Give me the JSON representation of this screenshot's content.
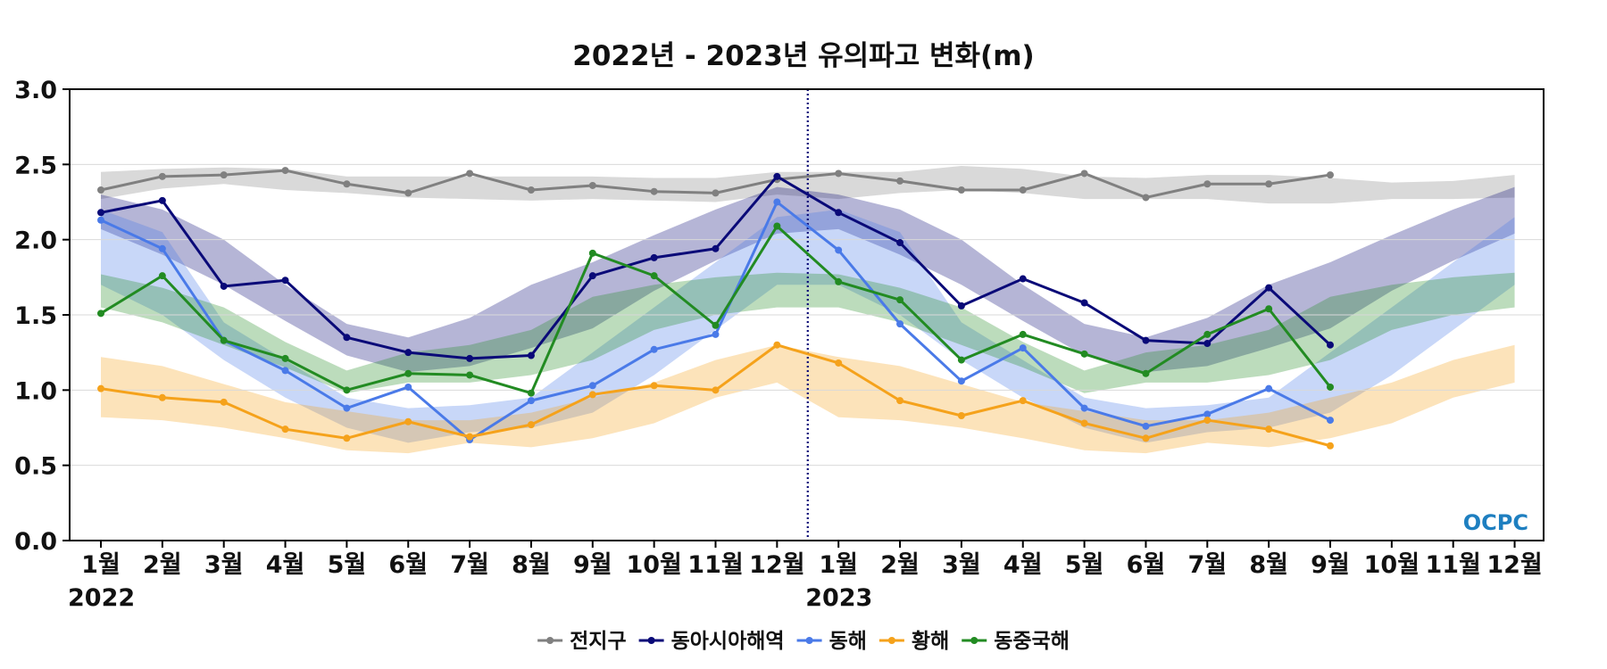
{
  "chart_data": {
    "type": "line",
    "title": "2022년 - 2023년 유의파고 변화(m)",
    "xlabel": "",
    "ylabel": "",
    "ylim": [
      0,
      3.0
    ],
    "yticks": [
      "0.0",
      "0.5",
      "1.0",
      "1.5",
      "2.0",
      "2.5",
      "3.0"
    ],
    "ytick_values": [
      0,
      0.5,
      1.0,
      1.5,
      2.0,
      2.5,
      3.0
    ],
    "categories": [
      "1월",
      "2월",
      "3월",
      "4월",
      "5월",
      "6월",
      "7월",
      "8월",
      "9월",
      "10월",
      "11월",
      "12월",
      "1월",
      "2월",
      "3월",
      "4월",
      "5월",
      "6월",
      "7월",
      "8월",
      "9월",
      "10월",
      "11월",
      "12월"
    ],
    "years": [
      {
        "label": "2022",
        "start_index": 0
      },
      {
        "label": "2023",
        "start_index": 12
      }
    ],
    "divider_between": [
      11,
      12
    ],
    "grid": true,
    "legend_position": "bottom",
    "series": [
      {
        "name": "전지구",
        "color": "#808080",
        "values": [
          2.33,
          2.42,
          2.43,
          2.46,
          2.37,
          2.31,
          2.44,
          2.33,
          2.36,
          2.32,
          2.31,
          2.4,
          2.44,
          2.39,
          2.33,
          2.33,
          2.44,
          2.28,
          2.37,
          2.37,
          2.43,
          null,
          null,
          null
        ],
        "band_low": [
          2.27,
          2.34,
          2.37,
          2.33,
          2.31,
          2.28,
          2.27,
          2.26,
          2.27,
          2.26,
          2.25,
          2.3,
          2.27,
          2.31,
          2.33,
          2.31,
          2.27,
          2.27,
          2.27,
          2.24,
          2.24,
          2.27,
          2.27,
          2.28
        ],
        "band_high": [
          2.45,
          2.47,
          2.48,
          2.47,
          2.42,
          2.42,
          2.42,
          2.42,
          2.42,
          2.41,
          2.41,
          2.45,
          2.45,
          2.45,
          2.49,
          2.47,
          2.42,
          2.41,
          2.43,
          2.43,
          2.41,
          2.38,
          2.39,
          2.43
        ]
      },
      {
        "name": "동아시아해역",
        "color": "#0a0a78",
        "values": [
          2.18,
          2.26,
          1.69,
          1.73,
          1.35,
          1.25,
          1.21,
          1.23,
          1.76,
          1.88,
          1.94,
          2.42,
          2.18,
          1.98,
          1.56,
          1.74,
          1.58,
          1.33,
          1.31,
          1.68,
          1.3,
          null,
          null,
          null
        ],
        "band_low": [
          2.07,
          1.9,
          1.7,
          1.46,
          1.23,
          1.12,
          1.16,
          1.28,
          1.41,
          1.66,
          1.86,
          2.04,
          2.07,
          1.9,
          1.7,
          1.46,
          1.23,
          1.12,
          1.16,
          1.28,
          1.41,
          1.66,
          1.86,
          2.04
        ],
        "band_high": [
          2.3,
          2.2,
          2.0,
          1.7,
          1.44,
          1.35,
          1.48,
          1.7,
          1.85,
          2.03,
          2.2,
          2.35,
          2.3,
          2.2,
          2.0,
          1.7,
          1.44,
          1.35,
          1.48,
          1.7,
          1.85,
          2.03,
          2.2,
          2.35
        ]
      },
      {
        "name": "동해",
        "color": "#4a7ae8",
        "values": [
          2.13,
          1.94,
          1.33,
          1.13,
          0.88,
          1.02,
          0.67,
          0.93,
          1.03,
          1.27,
          1.37,
          2.25,
          1.93,
          1.44,
          1.06,
          1.28,
          0.88,
          0.76,
          0.84,
          1.01,
          0.8,
          null,
          null,
          null
        ],
        "band_low": [
          1.7,
          1.5,
          1.2,
          0.95,
          0.75,
          0.65,
          0.72,
          0.75,
          0.85,
          1.1,
          1.4,
          1.7,
          1.7,
          1.5,
          1.2,
          0.95,
          0.75,
          0.65,
          0.72,
          0.75,
          0.85,
          1.1,
          1.4,
          1.7
        ],
        "band_high": [
          2.2,
          2.05,
          1.45,
          1.2,
          0.95,
          0.88,
          0.9,
          0.95,
          1.25,
          1.55,
          1.85,
          2.15,
          2.2,
          2.05,
          1.45,
          1.2,
          0.95,
          0.88,
          0.9,
          0.95,
          1.25,
          1.55,
          1.85,
          2.15
        ]
      },
      {
        "name": "황해",
        "color": "#f5a21b",
        "values": [
          1.01,
          0.95,
          0.92,
          0.74,
          0.68,
          0.79,
          0.69,
          0.77,
          0.97,
          1.03,
          1.0,
          1.3,
          1.18,
          0.93,
          0.83,
          0.93,
          0.78,
          0.68,
          0.8,
          0.74,
          0.63,
          null,
          null,
          null
        ],
        "band_low": [
          0.82,
          0.8,
          0.75,
          0.68,
          0.6,
          0.58,
          0.65,
          0.62,
          0.68,
          0.78,
          0.95,
          1.05,
          0.82,
          0.8,
          0.75,
          0.68,
          0.6,
          0.58,
          0.65,
          0.62,
          0.68,
          0.78,
          0.95,
          1.05
        ],
        "band_high": [
          1.22,
          1.16,
          1.04,
          0.92,
          0.86,
          0.8,
          0.8,
          0.85,
          0.95,
          1.05,
          1.2,
          1.3,
          1.22,
          1.16,
          1.04,
          0.92,
          0.86,
          0.8,
          0.8,
          0.85,
          0.95,
          1.05,
          1.2,
          1.3
        ]
      },
      {
        "name": "동중국해",
        "color": "#228b22",
        "values": [
          1.51,
          1.76,
          1.33,
          1.21,
          1.0,
          1.11,
          1.1,
          0.98,
          1.91,
          1.76,
          1.43,
          2.09,
          1.72,
          1.6,
          1.2,
          1.37,
          1.24,
          1.11,
          1.37,
          1.54,
          1.02,
          null,
          null,
          null
        ],
        "band_low": [
          1.55,
          1.45,
          1.3,
          1.15,
          0.98,
          1.05,
          1.05,
          1.1,
          1.2,
          1.4,
          1.5,
          1.55,
          1.55,
          1.45,
          1.3,
          1.15,
          0.98,
          1.05,
          1.05,
          1.1,
          1.2,
          1.4,
          1.5,
          1.55
        ],
        "band_high": [
          1.77,
          1.68,
          1.55,
          1.32,
          1.13,
          1.25,
          1.3,
          1.4,
          1.62,
          1.7,
          1.75,
          1.78,
          1.77,
          1.68,
          1.55,
          1.32,
          1.13,
          1.25,
          1.3,
          1.4,
          1.62,
          1.7,
          1.75,
          1.78
        ]
      }
    ]
  },
  "logo": {
    "text": "OCPC",
    "color": "#1e7fc0"
  }
}
